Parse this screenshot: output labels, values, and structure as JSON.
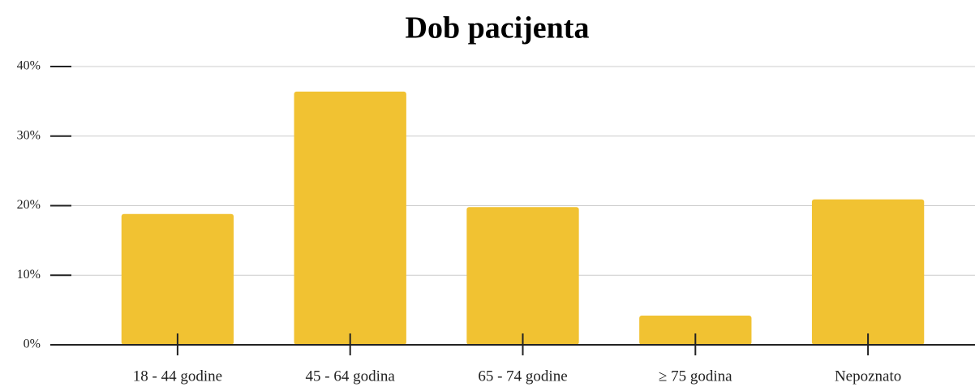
{
  "chart_data": {
    "type": "bar",
    "title": "Dob pacijenta",
    "categories": [
      "18 - 44 godine",
      "45 - 64 godina",
      "65 - 74 godine",
      "≥ 75 godina",
      "Nepoznato"
    ],
    "values": [
      18.8,
      36.4,
      19.8,
      4.2,
      20.9
    ],
    "color": "#f1c232",
    "ylim": [
      0,
      40
    ],
    "yticks": [
      {
        "value": 0,
        "label": "0%"
      },
      {
        "value": 10,
        "label": "10%"
      },
      {
        "value": 20,
        "label": "20%"
      },
      {
        "value": 30,
        "label": "30%"
      },
      {
        "value": 40,
        "label": "40%"
      }
    ],
    "grid": true
  }
}
